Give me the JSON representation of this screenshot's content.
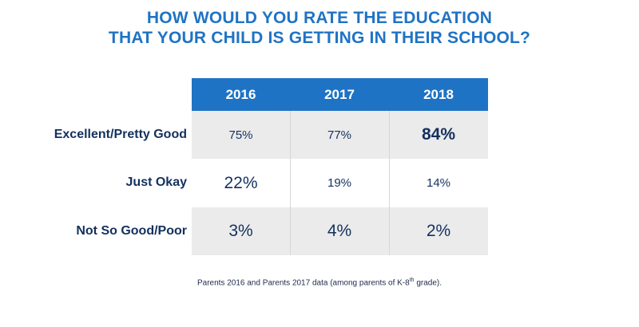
{
  "title": {
    "line1": "HOW WOULD YOU RATE THE EDUCATION",
    "line2": "THAT YOUR CHILD IS GETTING IN THEIR SCHOOL?"
  },
  "chart_data": {
    "type": "table",
    "title": "HOW WOULD YOU RATE THE EDUCATION THAT YOUR CHILD IS GETTING IN THEIR SCHOOL?",
    "columns": [
      "2016",
      "2017",
      "2018"
    ],
    "rows": [
      {
        "label": "Excellent/Pretty Good",
        "values": [
          "75%",
          "77%",
          "84%"
        ],
        "emphasis": [
          false,
          false,
          true
        ]
      },
      {
        "label": "Just Okay",
        "values": [
          "22%",
          "19%",
          "14%"
        ],
        "emphasis": [
          true,
          false,
          false
        ]
      },
      {
        "label": "Not So Good/Poor",
        "values": [
          "3%",
          "4%",
          "2%"
        ],
        "emphasis": [
          false,
          false,
          false
        ]
      }
    ],
    "numeric_values": {
      "Excellent/Pretty Good": [
        75,
        77,
        84
      ],
      "Just Okay": [
        22,
        19,
        14
      ],
      "Not So Good/Poor": [
        3,
        4,
        2
      ]
    },
    "colors": {
      "header": "#1f73c4",
      "row_shade": "#ebebeb",
      "text": "#13305e"
    }
  },
  "footnote": {
    "before": "Parents 2016 and Parents 2017 data (among parents of K-8",
    "sup": "th",
    "after": " grade)."
  }
}
